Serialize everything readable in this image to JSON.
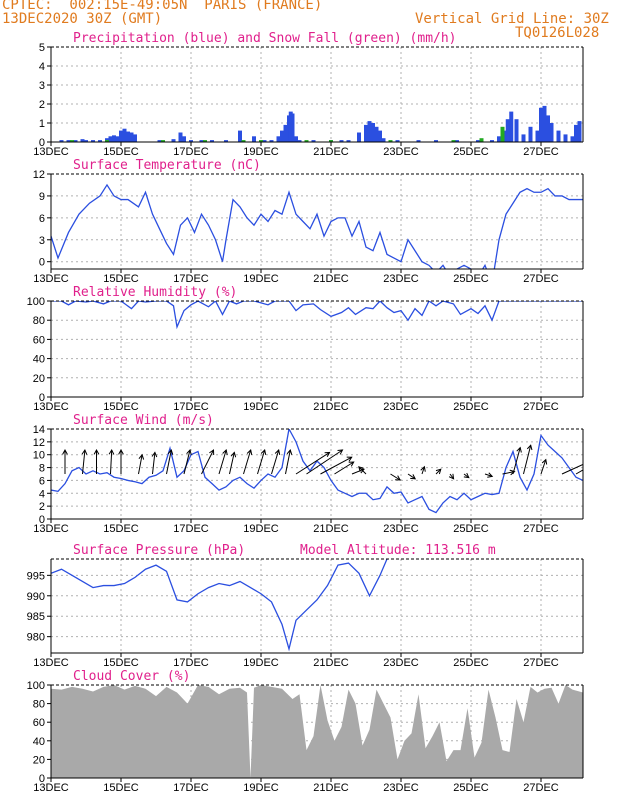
{
  "header": {
    "line1": "CPTEC:  002:15E-49:05N  PARIS (FRANCE)",
    "line2": "13DEC2020 30Z (GMT)",
    "right1": "Vertical Grid Line: 30Z",
    "right2": "TQ0126L028"
  },
  "x_tick_labels": [
    "13DEC",
    "15DEC",
    "17DEC",
    "19DEC",
    "21DEC",
    "23DEC",
    "25DEC",
    "27DEC"
  ],
  "colors": {
    "line": "#2b4fe0",
    "snow": "#22aa22",
    "cloud": "#a9a9a9",
    "title": "#e0208c",
    "header": "#e07b1f",
    "grid": "#b0b0b0"
  },
  "chart_data": [
    {
      "type": "bar",
      "title": "Precipitation (blue) and Snow Fall (green) (mm/h)",
      "xlim": [
        13,
        28.2
      ],
      "ylim": [
        0,
        5
      ],
      "yticks": [
        0,
        1,
        2,
        3,
        4,
        5
      ],
      "series": [
        {
          "name": "Precipitation",
          "x": [
            13.3,
            13.5,
            13.7,
            13.9,
            14.0,
            14.2,
            14.4,
            14.6,
            14.7,
            14.8,
            14.9,
            15.0,
            15.1,
            15.2,
            15.3,
            15.4,
            16.1,
            16.5,
            16.7,
            16.8,
            17.0,
            17.3,
            17.6,
            18.0,
            18.4,
            18.8,
            19.1,
            19.3,
            19.5,
            19.6,
            19.7,
            19.8,
            19.85,
            19.9,
            20.0,
            20.1,
            20.5,
            21.0,
            21.3,
            21.5,
            21.8,
            22.0,
            22.1,
            22.2,
            22.3,
            22.4,
            22.5,
            22.9,
            23.5,
            24.0,
            24.6,
            25.2,
            25.6,
            25.8,
            25.95,
            26.05,
            26.15,
            26.3,
            26.5,
            26.7,
            26.9,
            27.0,
            27.1,
            27.2,
            27.3,
            27.5,
            27.7,
            27.9,
            28.0,
            28.1
          ],
          "values": [
            0.1,
            0.1,
            0.1,
            0.15,
            0.1,
            0.1,
            0.1,
            0.2,
            0.3,
            0.35,
            0.3,
            0.6,
            0.7,
            0.55,
            0.5,
            0.4,
            0.1,
            0.15,
            0.5,
            0.3,
            0.1,
            0.1,
            0.1,
            0.1,
            0.6,
            0.3,
            0.1,
            0.1,
            0.3,
            0.6,
            0.9,
            1.4,
            1.6,
            1.5,
            0.3,
            0.1,
            0.1,
            0.1,
            0.1,
            0.1,
            0.5,
            0.9,
            1.1,
            1.0,
            0.8,
            0.6,
            0.2,
            0.1,
            0.1,
            0.1,
            0.1,
            0.1,
            0.1,
            0.3,
            0.6,
            1.2,
            1.6,
            1.2,
            0.4,
            0.8,
            0.6,
            1.8,
            1.9,
            1.4,
            1.0,
            0.6,
            0.4,
            0.3,
            0.9,
            1.1
          ]
        },
        {
          "name": "Snow Fall",
          "x": [
            13.6,
            14.6,
            16.2,
            17.4,
            18.5,
            19.0,
            20.3,
            21.0,
            22.7,
            24.5,
            25.3,
            25.9
          ],
          "values": [
            0.1,
            0.1,
            0.1,
            0.1,
            0.1,
            0.1,
            0.1,
            0.1,
            0.1,
            0.1,
            0.2,
            0.8
          ]
        }
      ]
    },
    {
      "type": "line",
      "title": "Surface Temperature (nC)",
      "xlim": [
        13,
        28.2
      ],
      "ylim": [
        -1,
        12
      ],
      "yticks": [
        0,
        3,
        6,
        9,
        12
      ],
      "x": [
        13.0,
        13.2,
        13.5,
        13.8,
        14.1,
        14.4,
        14.6,
        14.8,
        15.0,
        15.2,
        15.5,
        15.7,
        15.9,
        16.1,
        16.3,
        16.5,
        16.7,
        16.9,
        17.1,
        17.3,
        17.5,
        17.7,
        17.9,
        18.0,
        18.2,
        18.4,
        18.6,
        18.8,
        19.0,
        19.2,
        19.4,
        19.6,
        19.8,
        20.0,
        20.2,
        20.4,
        20.6,
        20.8,
        21.0,
        21.2,
        21.4,
        21.6,
        21.8,
        22.0,
        22.2,
        22.4,
        22.6,
        22.8,
        23.0,
        23.2,
        23.4,
        23.6,
        23.8,
        24.0,
        24.2,
        24.4,
        24.6,
        24.8,
        25.0,
        25.2,
        25.4,
        25.6,
        25.8,
        26.0,
        26.2,
        26.4,
        26.6,
        26.8,
        27.0,
        27.2,
        27.4,
        27.6,
        27.8,
        28.0,
        28.2
      ],
      "values": [
        3.5,
        0.5,
        4.0,
        6.5,
        8.0,
        9.0,
        10.5,
        9.0,
        8.5,
        8.5,
        7.5,
        9.5,
        6.5,
        4.5,
        2.5,
        1.0,
        5.0,
        6.0,
        4.0,
        6.5,
        5.0,
        3.0,
        0.0,
        3.0,
        8.5,
        7.5,
        6.0,
        5.0,
        6.5,
        5.5,
        7.0,
        6.5,
        9.5,
        6.5,
        5.5,
        4.5,
        6.5,
        3.5,
        5.5,
        6.0,
        6.0,
        3.5,
        5.5,
        2.0,
        1.5,
        4.0,
        1.0,
        0.5,
        0.0,
        3.0,
        1.5,
        0.0,
        -0.5,
        -1.5,
        -0.5,
        -2.0,
        -1.0,
        -0.5,
        -1.0,
        -2.0,
        -0.5,
        -3.0,
        3.0,
        6.5,
        8.0,
        9.5,
        10.0,
        9.5,
        9.5,
        10.0,
        9.0,
        9.0,
        8.5,
        8.5,
        8.5
      ]
    },
    {
      "type": "line",
      "title": "Relative Humidity (%)",
      "xlim": [
        13,
        28.2
      ],
      "ylim": [
        0,
        100
      ],
      "yticks": [
        0,
        20,
        40,
        60,
        80,
        100
      ],
      "x": [
        13.0,
        13.3,
        13.5,
        13.7,
        14.0,
        14.2,
        14.5,
        14.7,
        15.0,
        15.3,
        15.5,
        15.7,
        16.0,
        16.3,
        16.5,
        16.6,
        16.8,
        17.0,
        17.2,
        17.5,
        17.7,
        17.9,
        18.1,
        18.3,
        18.5,
        18.8,
        19.0,
        19.2,
        19.4,
        19.6,
        19.8,
        20.0,
        20.2,
        20.5,
        20.7,
        21.0,
        21.3,
        21.5,
        21.7,
        22.0,
        22.2,
        22.4,
        22.6,
        22.8,
        23.0,
        23.2,
        23.4,
        23.6,
        23.8,
        24.0,
        24.2,
        24.5,
        24.7,
        25.0,
        25.2,
        25.4,
        25.6,
        25.8,
        26.0,
        26.3,
        26.6,
        27.0,
        27.4,
        27.8,
        28.2
      ],
      "values": [
        100,
        100,
        96,
        100,
        99,
        100,
        97,
        100,
        100,
        92,
        100,
        99,
        100,
        100,
        95,
        73,
        90,
        96,
        100,
        94,
        100,
        86,
        100,
        97,
        100,
        100,
        98,
        96,
        100,
        100,
        100,
        90,
        96,
        97,
        91,
        84,
        88,
        93,
        86,
        93,
        92,
        100,
        93,
        88,
        90,
        80,
        92,
        85,
        100,
        95,
        100,
        97,
        86,
        92,
        87,
        95,
        80,
        100,
        100,
        100,
        100,
        100,
        100,
        100,
        100
      ]
    },
    {
      "type": "line",
      "title": "Surface Wind (m/s)",
      "xlim": [
        13,
        28.2
      ],
      "ylim": [
        0,
        14
      ],
      "yticks": [
        0,
        2,
        4,
        6,
        8,
        10,
        12,
        14
      ],
      "x": [
        13.0,
        13.2,
        13.4,
        13.6,
        13.8,
        14.0,
        14.2,
        14.4,
        14.6,
        14.8,
        15.0,
        15.2,
        15.4,
        15.6,
        15.8,
        16.0,
        16.2,
        16.4,
        16.6,
        16.8,
        17.0,
        17.2,
        17.4,
        17.6,
        17.8,
        18.0,
        18.2,
        18.4,
        18.6,
        18.8,
        19.0,
        19.2,
        19.4,
        19.6,
        19.8,
        20.0,
        20.2,
        20.4,
        20.6,
        20.8,
        21.0,
        21.2,
        21.4,
        21.6,
        21.8,
        22.0,
        22.2,
        22.4,
        22.6,
        22.8,
        23.0,
        23.2,
        23.4,
        23.6,
        23.8,
        24.0,
        24.2,
        24.4,
        24.6,
        24.8,
        25.0,
        25.2,
        25.4,
        25.6,
        25.8,
        26.0,
        26.2,
        26.4,
        26.6,
        26.8,
        27.0,
        27.2,
        27.4,
        27.6,
        27.8,
        28.0,
        28.2
      ],
      "values": [
        4.5,
        4.3,
        5.5,
        7.5,
        8.0,
        7.0,
        7.5,
        7.0,
        7.2,
        6.5,
        6.3,
        6.0,
        5.8,
        5.5,
        6.5,
        6.8,
        7.5,
        11.0,
        6.5,
        7.5,
        10.0,
        10.5,
        6.5,
        5.5,
        4.5,
        5.0,
        6.0,
        6.5,
        5.5,
        4.8,
        6.0,
        7.0,
        6.5,
        8.0,
        14.0,
        12.0,
        9.0,
        7.5,
        9.0,
        8.0,
        6.0,
        4.5,
        4.0,
        3.5,
        4.0,
        4.0,
        3.0,
        3.2,
        5.0,
        4.0,
        4.2,
        2.5,
        3.0,
        3.5,
        1.5,
        1.0,
        2.5,
        3.5,
        3.0,
        4.0,
        3.0,
        3.5,
        4.0,
        3.8,
        4.0,
        8.0,
        10.5,
        6.5,
        4.5,
        7.0,
        13.0,
        11.5,
        10.5,
        9.5,
        8.0,
        6.5,
        6.0
      ],
      "arrows": [
        {
          "x": 13.4,
          "u": 0.0,
          "v": 1.0
        },
        {
          "x": 13.9,
          "u": 0.1,
          "v": 1.0
        },
        {
          "x": 14.3,
          "u": 0.0,
          "v": 1.0
        },
        {
          "x": 14.7,
          "u": 0.05,
          "v": 1.0
        },
        {
          "x": 15.0,
          "u": 0.0,
          "v": 1.0
        },
        {
          "x": 15.5,
          "u": 0.15,
          "v": 0.8
        },
        {
          "x": 15.9,
          "u": 0.1,
          "v": 0.9
        },
        {
          "x": 16.3,
          "u": 0.2,
          "v": 1.0
        },
        {
          "x": 16.8,
          "u": 0.25,
          "v": 1.0
        },
        {
          "x": 17.3,
          "u": 0.5,
          "v": 1.0
        },
        {
          "x": 17.8,
          "u": 0.3,
          "v": 1.0
        },
        {
          "x": 18.1,
          "u": 0.2,
          "v": 0.9
        },
        {
          "x": 18.5,
          "u": 0.3,
          "v": 1.0
        },
        {
          "x": 18.9,
          "u": 0.3,
          "v": 1.0
        },
        {
          "x": 19.3,
          "u": 0.3,
          "v": 1.0
        },
        {
          "x": 19.7,
          "u": 0.2,
          "v": 1.0
        },
        {
          "x": 20.0,
          "u": 1.4,
          "v": 0.9
        },
        {
          "x": 20.3,
          "u": 1.5,
          "v": 1.0
        },
        {
          "x": 20.7,
          "u": 1.3,
          "v": 0.7
        },
        {
          "x": 21.1,
          "u": 0.8,
          "v": 0.5
        },
        {
          "x": 21.6,
          "u": 0.5,
          "v": 0.2
        },
        {
          "x": 22.0,
          "u": -0.3,
          "v": 0.3
        },
        {
          "x": 22.7,
          "u": 0.4,
          "v": -0.25
        },
        {
          "x": 23.2,
          "u": 0.3,
          "v": -0.2
        },
        {
          "x": 23.6,
          "u": 0.1,
          "v": 0.3
        },
        {
          "x": 24.0,
          "u": 0.2,
          "v": 0.2
        },
        {
          "x": 24.4,
          "u": 0.15,
          "v": -0.2
        },
        {
          "x": 24.8,
          "u": 0.2,
          "v": -0.15
        },
        {
          "x": 25.4,
          "u": 0.3,
          "v": -0.1
        },
        {
          "x": 25.9,
          "u": 0.5,
          "v": 0.1
        },
        {
          "x": 26.2,
          "u": 0.3,
          "v": 1.1
        },
        {
          "x": 26.5,
          "u": 0.3,
          "v": 1.2
        },
        {
          "x": 27.0,
          "u": 0.2,
          "v": 0.6
        },
        {
          "x": 27.6,
          "u": 1.1,
          "v": 0.5
        },
        {
          "x": 28.0,
          "u": 1.2,
          "v": 0.7
        }
      ]
    },
    {
      "type": "line",
      "title": "Surface Pressure (hPa)",
      "subtitle": "Model Altitude: 113.516 m",
      "xlim": [
        13,
        28.2
      ],
      "ylim": [
        976,
        999
      ],
      "yticks": [
        980,
        985,
        990,
        995
      ],
      "x": [
        13.0,
        13.3,
        13.6,
        13.9,
        14.2,
        14.5,
        14.8,
        15.1,
        15.4,
        15.7,
        16.0,
        16.3,
        16.6,
        16.9,
        17.2,
        17.5,
        17.8,
        18.1,
        18.4,
        18.7,
        19.0,
        19.3,
        19.6,
        19.8,
        20.0,
        20.3,
        20.6,
        20.9,
        21.2,
        21.5,
        21.8,
        22.1,
        22.4,
        22.6
      ],
      "values": [
        995.5,
        996.5,
        995.0,
        993.5,
        992.0,
        992.5,
        992.5,
        993.0,
        994.5,
        996.5,
        997.5,
        996.0,
        989.0,
        988.5,
        990.5,
        992.0,
        993.0,
        992.5,
        993.5,
        992.0,
        990.5,
        988.5,
        983.0,
        977.0,
        984.0,
        986.5,
        989.0,
        992.5,
        997.5,
        998.0,
        995.5,
        990.0,
        995.0,
        999.0
      ]
    },
    {
      "type": "area",
      "title": "Cloud Cover (%)",
      "xlim": [
        13,
        28.2
      ],
      "ylim": [
        0,
        100
      ],
      "yticks": [
        0,
        20,
        40,
        60,
        80,
        100
      ],
      "x": [
        13.0,
        13.3,
        13.6,
        13.9,
        14.2,
        14.5,
        14.8,
        15.1,
        15.4,
        15.7,
        16.0,
        16.3,
        16.6,
        16.9,
        17.2,
        17.5,
        17.8,
        18.1,
        18.4,
        18.6,
        18.7,
        18.8,
        19.0,
        19.3,
        19.6,
        19.9,
        20.1,
        20.3,
        20.5,
        20.7,
        20.9,
        21.1,
        21.3,
        21.5,
        21.7,
        21.9,
        22.1,
        22.3,
        22.5,
        22.7,
        22.9,
        23.1,
        23.3,
        23.5,
        23.7,
        23.9,
        24.1,
        24.3,
        24.5,
        24.7,
        24.9,
        25.1,
        25.3,
        25.5,
        25.7,
        25.9,
        26.1,
        26.3,
        26.5,
        26.7,
        26.9,
        27.1,
        27.3,
        27.5,
        27.7,
        27.9,
        28.2
      ],
      "values": [
        96,
        95,
        98,
        96,
        93,
        98,
        100,
        95,
        99,
        96,
        88,
        98,
        92,
        80,
        100,
        98,
        90,
        96,
        97,
        92,
        0,
        97,
        100,
        98,
        96,
        85,
        90,
        30,
        45,
        100,
        62,
        40,
        55,
        95,
        80,
        35,
        52,
        95,
        80,
        65,
        20,
        40,
        48,
        90,
        32,
        45,
        60,
        18,
        30,
        30,
        75,
        22,
        38,
        95,
        65,
        30,
        28,
        85,
        60,
        98,
        92,
        96,
        97,
        80,
        100,
        95,
        92
      ]
    }
  ]
}
